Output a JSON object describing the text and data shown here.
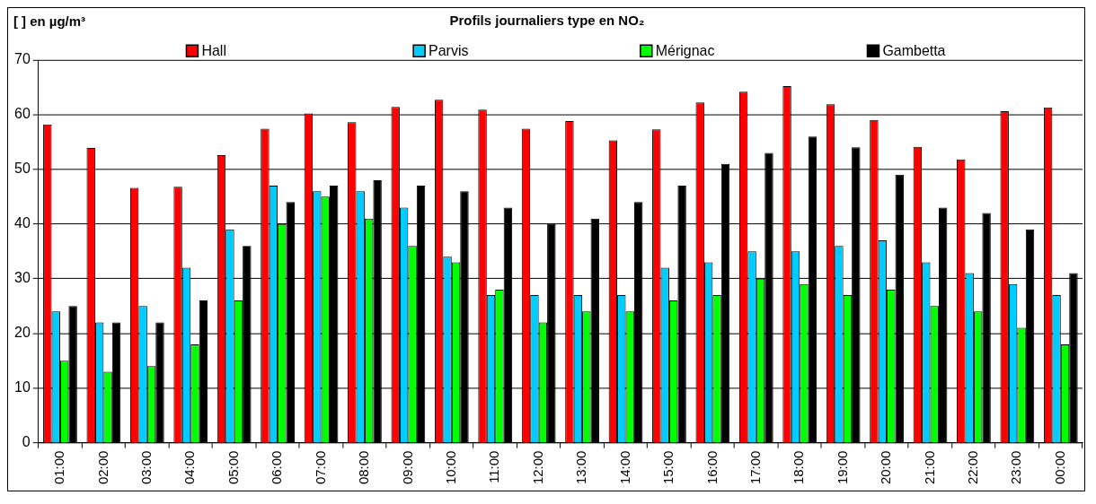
{
  "chart_data": {
    "type": "bar",
    "title": "Profils journaliers type en NO₂",
    "annotations": [
      "[ ] en µg/m³"
    ],
    "categories": [
      "01:00",
      "02:00",
      "03:00",
      "04:00",
      "05:00",
      "06:00",
      "07:00",
      "08:00",
      "09:00",
      "10:00",
      "11:00",
      "12:00",
      "13:00",
      "14:00",
      "15:00",
      "16:00",
      "17:00",
      "18:00",
      "19:00",
      "20:00",
      "21:00",
      "22:00",
      "23:00",
      "00:00"
    ],
    "series": [
      {
        "name": "Hall",
        "color": "#ff0000",
        "values": [
          58.2,
          53.9,
          46.6,
          46.8,
          52.6,
          57.4,
          60.2,
          58.6,
          61.4,
          62.7,
          60.9,
          57.4,
          58.8,
          55.3,
          57.3,
          62.2,
          64.2,
          65.2,
          61.9,
          59,
          54.1,
          51.8,
          60.6,
          61.3
        ]
      },
      {
        "name": "Parvis",
        "color": "#00ccff",
        "values": [
          24,
          22,
          25,
          32,
          39,
          47,
          46,
          46,
          43,
          34,
          27,
          27,
          27,
          27,
          32,
          33,
          35,
          35,
          36,
          37,
          33,
          31,
          29,
          27
        ]
      },
      {
        "name": "Mérignac",
        "color": "#00ff00",
        "values": [
          15,
          13,
          14,
          18,
          26,
          40,
          45,
          41,
          36,
          33,
          28,
          22,
          24,
          24,
          26,
          27,
          30,
          29,
          27,
          28,
          25,
          24,
          21,
          18
        ]
      },
      {
        "name": "Gambetta",
        "color": "#000000",
        "values": [
          25,
          22,
          22,
          26,
          36,
          44,
          47,
          48,
          47,
          46,
          43,
          40,
          41,
          44,
          47,
          51,
          53,
          56,
          54,
          49,
          43,
          42,
          39,
          31
        ]
      }
    ],
    "ylim": [
      0,
      70
    ],
    "yticks": [
      0,
      10,
      20,
      30,
      40,
      50,
      60,
      70
    ],
    "grid": "y",
    "legend": "top"
  }
}
